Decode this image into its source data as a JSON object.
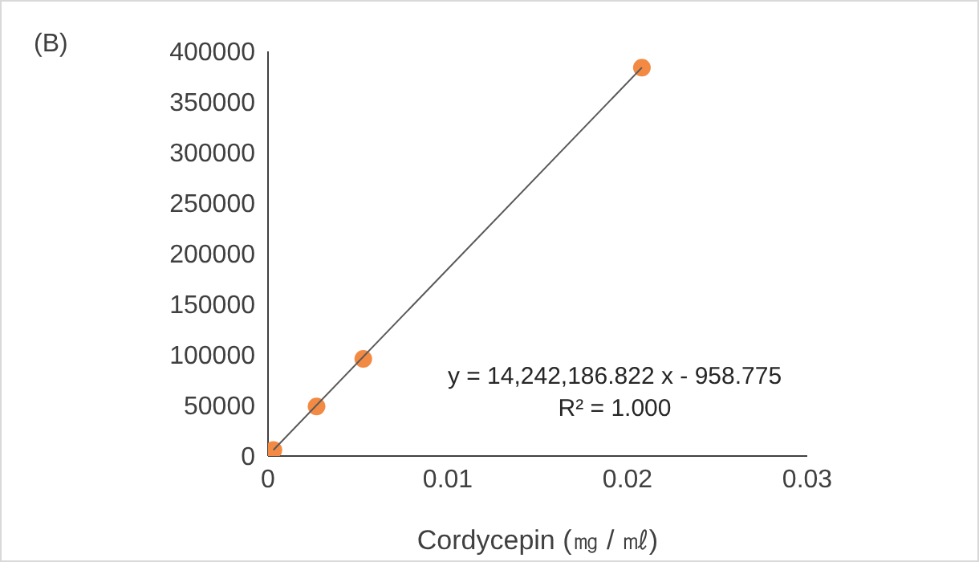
{
  "chart_data": {
    "type": "scatter",
    "title": "(B)",
    "xlabel": "Cordycepin (㎎ / ㎖)",
    "x": [
      0.0003,
      0.0027,
      0.0053,
      0.0208
    ],
    "series": [
      {
        "color": "#f28a44",
        "values": [
          6000,
          49000,
          96000,
          384000
        ],
        "marker": "circle"
      },
      {
        "type": "line",
        "color": "#595959",
        "x": [
          0.0003,
          0.0208
        ],
        "values": [
          6000,
          384000
        ],
        "marker": "none"
      }
    ],
    "annotations": [
      "y = 14,242,186.822 x - 958.775",
      "R² = 1.000"
    ],
    "xlim": [
      0,
      0.03
    ],
    "xticks": [
      0,
      0.01,
      0.02,
      0.03
    ],
    "ylim": [
      0,
      400000
    ],
    "yticks": [
      0,
      50000,
      100000,
      150000,
      200000,
      250000,
      300000,
      350000,
      400000
    ],
    "grid": false,
    "legend": false
  }
}
